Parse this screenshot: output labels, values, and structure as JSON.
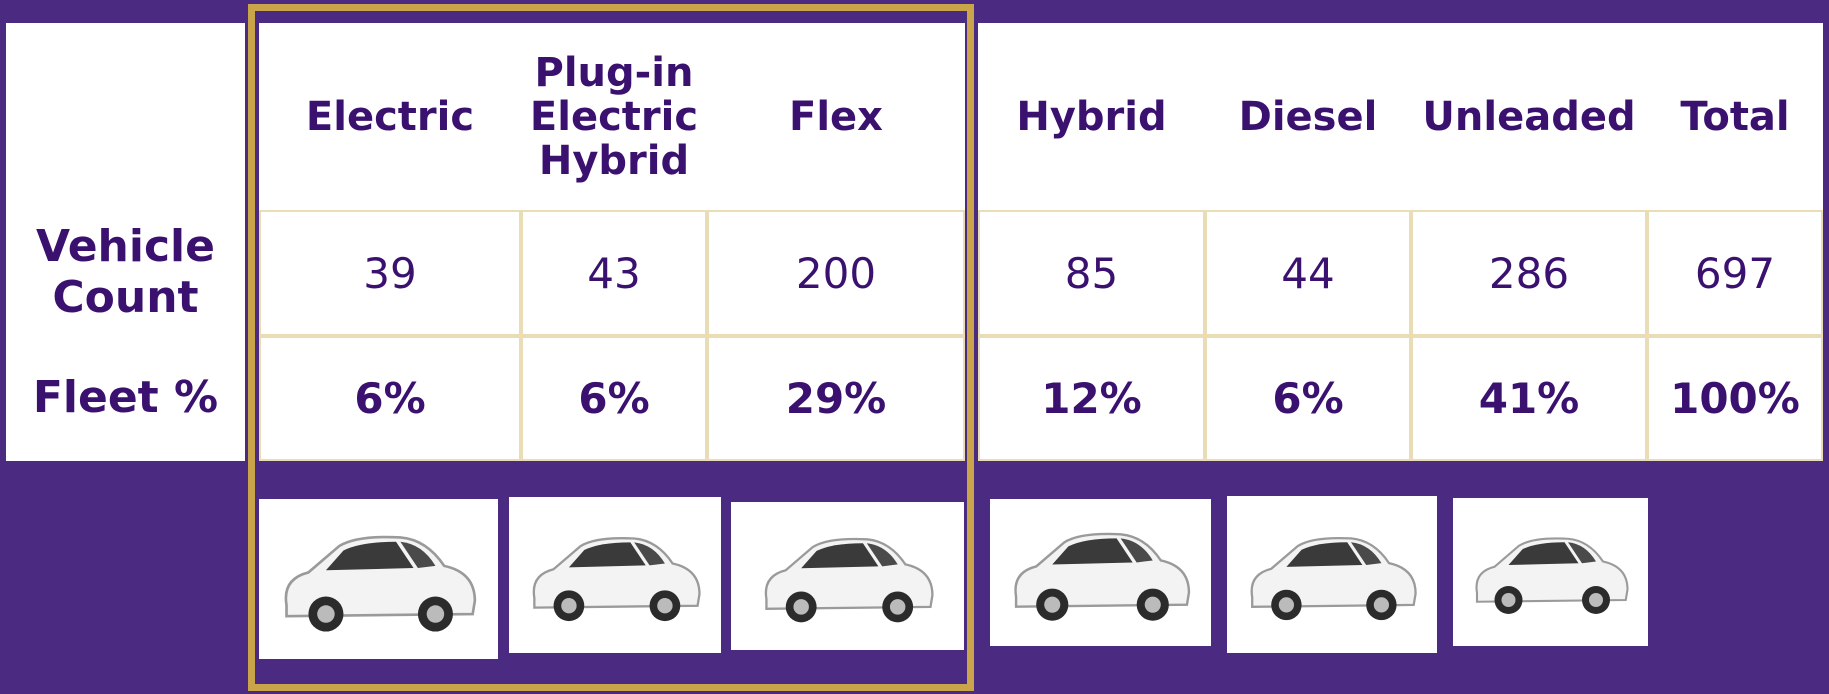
{
  "row_labels": [
    "Vehicle Count",
    "Fleet %"
  ],
  "columns": [
    {
      "header": "Electric",
      "count": 39,
      "share": "6%"
    },
    {
      "header": "Plug-in Electric Hybrid",
      "count": 43,
      "share": "6%"
    },
    {
      "header": "Flex",
      "count": 200,
      "share": "29%"
    },
    {
      "header": "Hybrid",
      "count": 85,
      "share": "12%"
    },
    {
      "header": "Diesel",
      "count": 44,
      "share": "6%"
    },
    {
      "header": "Unleaded",
      "count": 286,
      "share": "41%"
    },
    {
      "header": "Total",
      "count": 697,
      "share": "100%"
    }
  ]
}
